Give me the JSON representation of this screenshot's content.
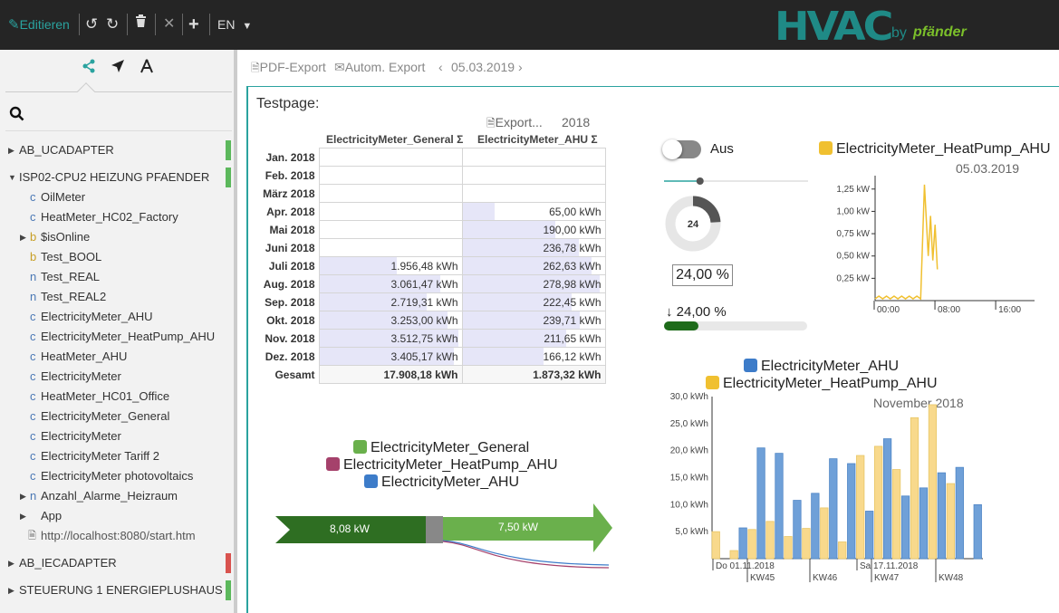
{
  "toolbar": {
    "edit_label": "Editieren",
    "language": "EN"
  },
  "brand": {
    "logo": "HVAC",
    "by": "by",
    "maker": "pfänder"
  },
  "sidebar": {
    "tabs": [
      "share-icon",
      "navigate-icon",
      "compass-icon"
    ],
    "items": [
      {
        "label": "AB_UCADAPTER",
        "type": "",
        "arrow": "▶",
        "status": "#5cb85c"
      },
      {
        "label": "ISP02-CPU2 HEIZUNG PFAENDER",
        "type": "",
        "arrow": "▼",
        "status": "#5cb85c"
      },
      {
        "label": "OilMeter",
        "type": "c",
        "arrow": ""
      },
      {
        "label": "HeatMeter_HC02_Factory",
        "type": "c",
        "arrow": ""
      },
      {
        "label": "$isOnline",
        "type": "b",
        "arrow": "▶"
      },
      {
        "label": "Test_BOOL",
        "type": "b",
        "arrow": ""
      },
      {
        "label": "Test_REAL",
        "type": "n",
        "arrow": ""
      },
      {
        "label": "Test_REAL2",
        "type": "n",
        "arrow": ""
      },
      {
        "label": "ElectricityMeter_AHU",
        "type": "c",
        "arrow": ""
      },
      {
        "label": "ElectricityMeter_HeatPump_AHU",
        "type": "c",
        "arrow": ""
      },
      {
        "label": "HeatMeter_AHU",
        "type": "c",
        "arrow": ""
      },
      {
        "label": "ElectricityMeter",
        "type": "c",
        "arrow": ""
      },
      {
        "label": "HeatMeter_HC01_Office",
        "type": "c",
        "arrow": ""
      },
      {
        "label": "ElectricityMeter_General",
        "type": "c",
        "arrow": ""
      },
      {
        "label": "ElectricityMeter",
        "type": "c",
        "arrow": ""
      },
      {
        "label": "ElectricityMeter Tariff 2",
        "type": "c",
        "arrow": ""
      },
      {
        "label": "ElectricityMeter photovoltaics",
        "type": "c",
        "arrow": ""
      },
      {
        "label": "Anzahl_Alarme_Heizraum",
        "type": "n",
        "arrow": "▶"
      },
      {
        "label": "App",
        "type": "",
        "arrow": "▶"
      },
      {
        "label": "http://localhost:8080/start.htm",
        "type": "",
        "arrow": ""
      },
      {
        "label": "AB_IECADAPTER",
        "type": "",
        "arrow": "▶",
        "status": "#d9534f"
      },
      {
        "label": "STEUERUNG 1 ENERGIEPLUSHAUS",
        "type": "",
        "arrow": "▶",
        "status": "#5cb85c"
      }
    ]
  },
  "subtoolbar": {
    "pdf_export": "PDF-Export",
    "auto_export": "Autom. Export",
    "date": "05.03.2019"
  },
  "page": {
    "title": "Testpage:"
  },
  "energy_table": {
    "export_label": "Export...",
    "year": "2018",
    "headers": [
      "ElectricityMeter_General Σ",
      "ElectricityMeter_AHU Σ"
    ],
    "rows": [
      {
        "month": "Jan. 2018",
        "general": "",
        "ahu": "",
        "g": 0,
        "a": 0
      },
      {
        "month": "Feb. 2018",
        "general": "",
        "ahu": "",
        "g": 0,
        "a": 0
      },
      {
        "month": "März 2018",
        "general": "",
        "ahu": "",
        "g": 0,
        "a": 0
      },
      {
        "month": "Apr. 2018",
        "general": "",
        "ahu": "65,00 kWh",
        "g": 0,
        "a": 65.0
      },
      {
        "month": "Mai 2018",
        "general": "",
        "ahu": "190,00 kWh",
        "g": 0,
        "a": 190.0
      },
      {
        "month": "Juni 2018",
        "general": "",
        "ahu": "236,78 kWh",
        "g": 0,
        "a": 236.78
      },
      {
        "month": "Juli 2018",
        "general": "1.956,48 kWh",
        "ahu": "262,63 kWh",
        "g": 1956.48,
        "a": 262.63
      },
      {
        "month": "Aug. 2018",
        "general": "3.061,47 kWh",
        "ahu": "278,98 kWh",
        "g": 3061.47,
        "a": 278.98
      },
      {
        "month": "Sep. 2018",
        "general": "2.719,31 kWh",
        "ahu": "222,45 kWh",
        "g": 2719.31,
        "a": 222.45
      },
      {
        "month": "Okt. 2018",
        "general": "3.253,00 kWh",
        "ahu": "239,71 kWh",
        "g": 3253.0,
        "a": 239.71
      },
      {
        "month": "Nov. 2018",
        "general": "3.512,75 kWh",
        "ahu": "211,65 kWh",
        "g": 3512.75,
        "a": 211.65
      },
      {
        "month": "Dez. 2018",
        "general": "3.405,17 kWh",
        "ahu": "166,12 kWh",
        "g": 3405.17,
        "a": 166.12
      }
    ],
    "total": {
      "month": "Gesamt",
      "general": "17.908,18 kWh",
      "ahu": "1.873,32 kWh"
    }
  },
  "widgets": {
    "switch_label": "Aus",
    "gauge_value": "24",
    "gauge_fraction": 0.24,
    "percent_value": "24,00 %",
    "progress_label": "24,00 %",
    "progress_fraction": 0.24,
    "slider_fraction": 0.25
  },
  "sankey": {
    "legend": [
      {
        "name": "ElectricityMeter_General",
        "color": "#6ab04c"
      },
      {
        "name": "ElectricityMeter_HeatPump_AHU",
        "color": "#a5416b"
      },
      {
        "name": "ElectricityMeter_AHU",
        "color": "#3d7cc9"
      }
    ],
    "left_value": "8,08 kW",
    "right_value": "7,50 kW"
  },
  "chart_data": [
    {
      "type": "line",
      "title": "ElectricityMeter_HeatPump_AHU",
      "subtitle": "05.03.2019",
      "color": "#f0c030",
      "ylim": [
        0,
        1.4
      ],
      "yticks": [
        "1,25 kW",
        "1,00 kW",
        "0,75 kW",
        "0,50 kW",
        "0,25 kW"
      ],
      "ytick_values": [
        1.25,
        1.0,
        0.75,
        0.5,
        0.25
      ],
      "xticks": [
        "00:00",
        "08:00",
        "16:00"
      ],
      "xlim": [
        0,
        21
      ],
      "series": [
        {
          "name": "ElectricityMeter_HeatPump_AHU",
          "x": [
            0,
            0.5,
            1,
            1.5,
            2,
            2.5,
            3,
            3.5,
            4,
            4.5,
            5,
            5.5,
            6,
            6.5,
            7,
            7.3,
            7.6,
            7.9,
            8.2
          ],
          "y": [
            0.02,
            0.05,
            0.02,
            0.05,
            0.02,
            0.05,
            0.02,
            0.05,
            0.02,
            0.05,
            0.02,
            0.05,
            0.02,
            1.3,
            0.5,
            0.95,
            0.45,
            0.85,
            0.35
          ]
        }
      ]
    },
    {
      "type": "bar",
      "subtitle": "November 2018",
      "ylim": [
        0,
        30
      ],
      "yticks": [
        "30,0 kWh",
        "25,0 kWh",
        "20,0 kWh",
        "15,0 kWh",
        "10,0 kWh",
        "5,0 kWh"
      ],
      "ytick_values": [
        30,
        25,
        20,
        15,
        10,
        5
      ],
      "xlabels": [
        "Do 01.11.2018",
        "KW45",
        "KW46",
        "Sa 17.11.2018",
        "KW47",
        "KW48"
      ],
      "series": [
        {
          "name": "ElectricityMeter_AHU",
          "color": "#6fa0d8",
          "values": [
            0,
            5.7,
            20.5,
            19.5,
            10.8,
            12.1,
            18.5,
            17.6,
            8.8,
            22.2,
            11.6,
            13.1,
            15.9,
            16.9,
            10
          ]
        },
        {
          "name": "ElectricityMeter_HeatPump_AHU",
          "color": "#f8d98c",
          "values": [
            5,
            1.5,
            5.4,
            6.9,
            4.1,
            5.6,
            9.4,
            3.1,
            19.1,
            20.8,
            16.5,
            26.1,
            28.5,
            13.9,
            0
          ]
        }
      ]
    }
  ]
}
